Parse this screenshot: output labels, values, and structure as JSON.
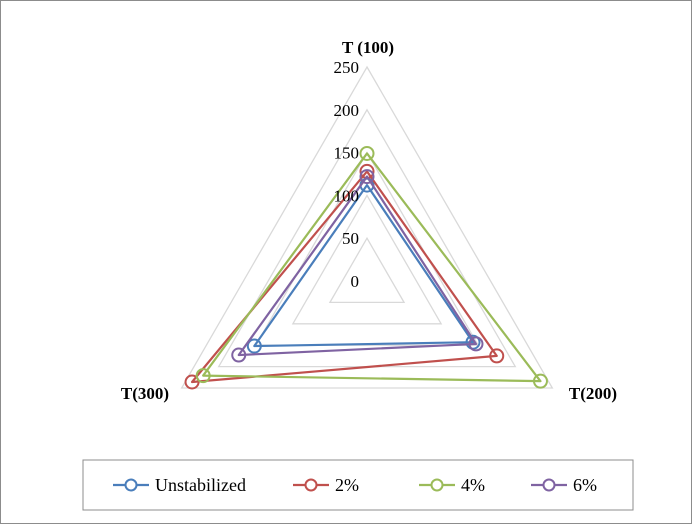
{
  "chart_data": {
    "type": "radar",
    "axes": [
      "T (100)",
      "T(200)",
      "T(300)"
    ],
    "r_range": [
      0,
      250
    ],
    "r_ticks": [
      0,
      50,
      100,
      150,
      200,
      250
    ],
    "gridlines": true,
    "legend_position": "bottom",
    "series": [
      {
        "name": "Unstabilized",
        "color": "#4a7ebb",
        "values": [
          112,
          143,
          152
        ]
      },
      {
        "name": "2%",
        "color": "#c0504d",
        "values": [
          128,
          175,
          236
        ]
      },
      {
        "name": "4%",
        "color": "#9bbb59",
        "values": [
          149,
          234,
          221
        ]
      },
      {
        "name": "6%",
        "color": "#7f63a2",
        "values": [
          122,
          147,
          173
        ]
      }
    ]
  }
}
